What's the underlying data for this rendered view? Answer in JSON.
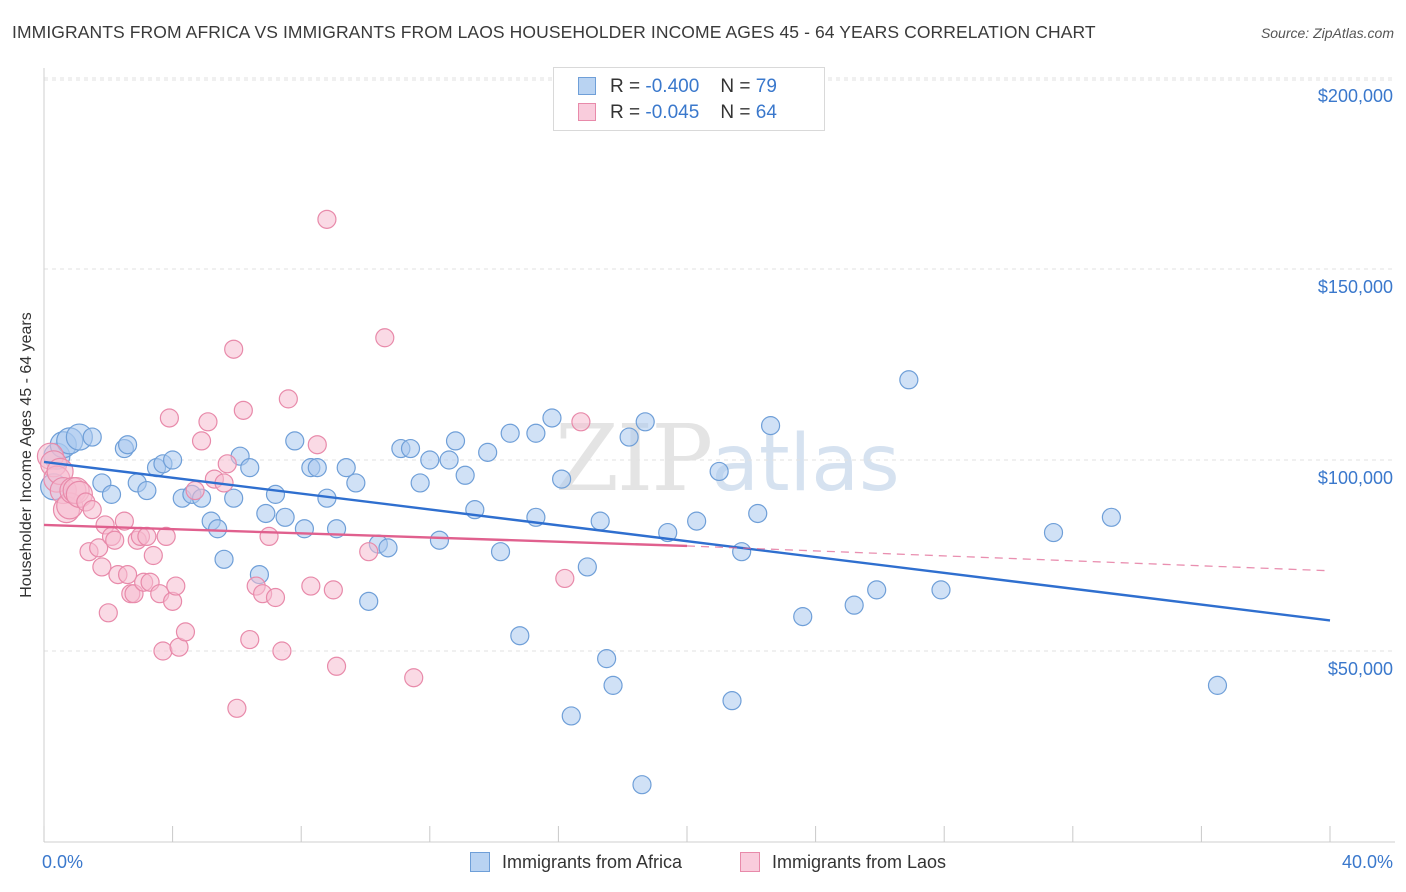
{
  "header": {
    "title": "IMMIGRANTS FROM AFRICA VS IMMIGRANTS FROM LAOS HOUSEHOLDER INCOME AGES 45 - 64 YEARS CORRELATION CHART",
    "source": "Source: ZipAtlas.com"
  },
  "watermark": {
    "zip": "ZIP",
    "atlas": "atlas"
  },
  "legend": {
    "r_label": "R =",
    "n_label": "N =",
    "africa": {
      "r": "-0.400",
      "n": "79"
    },
    "laos": {
      "r": "-0.045",
      "n": "64"
    }
  },
  "colors": {
    "africa_fill": "#a9c8ef",
    "africa_stroke": "#6f9fd8",
    "africa_line": "#2f6fcf",
    "laos_fill": "#f6bcd0",
    "laos_stroke": "#e88aaa",
    "laos_line": "#e0608e",
    "tick_text": "#3a78cc",
    "grid": "#e2e2e2"
  },
  "chart_data": {
    "type": "scatter",
    "title": "IMMIGRANTS FROM AFRICA VS IMMIGRANTS FROM LAOS HOUSEHOLDER INCOME AGES 45 - 64 YEARS CORRELATION CHART",
    "xlabel": "",
    "ylabel": "Householder Income Ages 45 - 64 years",
    "xlim": [
      0,
      40
    ],
    "ylim": [
      0,
      205000
    ],
    "x_tick_labels": [
      "0.0%",
      "40.0%"
    ],
    "y_ticks": [
      50000,
      100000,
      150000,
      200000
    ],
    "y_tick_labels": [
      "$50,000",
      "$100,000",
      "$150,000",
      "$200,000"
    ],
    "grid": true,
    "legend_position": "top-center",
    "series": [
      {
        "name": "Immigrants from Africa",
        "trend": {
          "x": [
            0,
            40
          ],
          "y": [
            99500,
            58000
          ]
        },
        "points": [
          [
            0.3,
            93000
          ],
          [
            0.4,
            101000
          ],
          [
            0.6,
            104000
          ],
          [
            0.8,
            105000
          ],
          [
            1.1,
            106000
          ],
          [
            1.5,
            106000
          ],
          [
            1.8,
            94000
          ],
          [
            2.1,
            91000
          ],
          [
            2.5,
            103000
          ],
          [
            2.6,
            104000
          ],
          [
            2.9,
            94000
          ],
          [
            3.2,
            92000
          ],
          [
            3.5,
            98000
          ],
          [
            3.7,
            99000
          ],
          [
            4.0,
            100000
          ],
          [
            4.3,
            90000
          ],
          [
            4.6,
            91000
          ],
          [
            4.9,
            90000
          ],
          [
            5.2,
            84000
          ],
          [
            5.4,
            82000
          ],
          [
            5.6,
            74000
          ],
          [
            5.9,
            90000
          ],
          [
            6.1,
            101000
          ],
          [
            6.4,
            98000
          ],
          [
            6.7,
            70000
          ],
          [
            6.9,
            86000
          ],
          [
            7.2,
            91000
          ],
          [
            7.5,
            85000
          ],
          [
            7.8,
            105000
          ],
          [
            8.1,
            82000
          ],
          [
            8.3,
            98000
          ],
          [
            8.5,
            98000
          ],
          [
            8.8,
            90000
          ],
          [
            9.1,
            82000
          ],
          [
            9.4,
            98000
          ],
          [
            9.7,
            94000
          ],
          [
            10.1,
            63000
          ],
          [
            10.4,
            78000
          ],
          [
            10.7,
            77000
          ],
          [
            11.1,
            103000
          ],
          [
            11.4,
            103000
          ],
          [
            11.7,
            94000
          ],
          [
            12.0,
            100000
          ],
          [
            12.3,
            79000
          ],
          [
            12.6,
            100000
          ],
          [
            12.8,
            105000
          ],
          [
            13.1,
            96000
          ],
          [
            13.4,
            87000
          ],
          [
            13.8,
            102000
          ],
          [
            14.2,
            76000
          ],
          [
            14.5,
            107000
          ],
          [
            14.8,
            54000
          ],
          [
            15.3,
            85000
          ],
          [
            15.3,
            107000
          ],
          [
            15.8,
            111000
          ],
          [
            16.1,
            95000
          ],
          [
            16.4,
            33000
          ],
          [
            16.9,
            72000
          ],
          [
            17.3,
            84000
          ],
          [
            17.5,
            48000
          ],
          [
            17.7,
            41000
          ],
          [
            18.2,
            106000
          ],
          [
            18.6,
            15000
          ],
          [
            18.7,
            110000
          ],
          [
            19.4,
            81000
          ],
          [
            20.3,
            84000
          ],
          [
            21.0,
            97000
          ],
          [
            21.4,
            37000
          ],
          [
            21.7,
            76000
          ],
          [
            22.2,
            86000
          ],
          [
            22.6,
            109000
          ],
          [
            23.6,
            59000
          ],
          [
            25.2,
            62000
          ],
          [
            25.9,
            66000
          ],
          [
            26.9,
            121000
          ],
          [
            27.9,
            66000
          ],
          [
            31.4,
            81000
          ],
          [
            33.2,
            85000
          ],
          [
            36.5,
            41000
          ]
        ]
      },
      {
        "name": "Immigrants from Laos",
        "trend": {
          "x": [
            0,
            20
          ],
          "y": [
            83000,
            77500
          ]
        },
        "trend_extension": {
          "x": [
            20,
            40
          ],
          "y": [
            77500,
            71000
          ]
        },
        "points": [
          [
            0.2,
            101000
          ],
          [
            0.3,
            99000
          ],
          [
            0.4,
            95000
          ],
          [
            0.5,
            97000
          ],
          [
            0.6,
            92000
          ],
          [
            0.7,
            87000
          ],
          [
            0.8,
            88000
          ],
          [
            0.9,
            92000
          ],
          [
            1.0,
            92000
          ],
          [
            1.1,
            91000
          ],
          [
            1.3,
            89000
          ],
          [
            1.4,
            76000
          ],
          [
            1.5,
            87000
          ],
          [
            1.7,
            77000
          ],
          [
            1.8,
            72000
          ],
          [
            1.9,
            83000
          ],
          [
            2.0,
            60000
          ],
          [
            2.1,
            80000
          ],
          [
            2.2,
            79000
          ],
          [
            2.3,
            70000
          ],
          [
            2.5,
            84000
          ],
          [
            2.6,
            70000
          ],
          [
            2.7,
            65000
          ],
          [
            2.8,
            65000
          ],
          [
            2.9,
            79000
          ],
          [
            3.0,
            80000
          ],
          [
            3.1,
            68000
          ],
          [
            3.2,
            80000
          ],
          [
            3.3,
            68000
          ],
          [
            3.4,
            75000
          ],
          [
            3.6,
            65000
          ],
          [
            3.7,
            50000
          ],
          [
            3.8,
            80000
          ],
          [
            3.9,
            111000
          ],
          [
            4.0,
            63000
          ],
          [
            4.1,
            67000
          ],
          [
            4.2,
            51000
          ],
          [
            4.4,
            55000
          ],
          [
            4.7,
            92000
          ],
          [
            4.9,
            105000
          ],
          [
            5.1,
            110000
          ],
          [
            5.3,
            95000
          ],
          [
            5.6,
            94000
          ],
          [
            5.7,
            99000
          ],
          [
            5.9,
            129000
          ],
          [
            6.0,
            35000
          ],
          [
            6.2,
            113000
          ],
          [
            6.4,
            53000
          ],
          [
            6.6,
            67000
          ],
          [
            6.8,
            65000
          ],
          [
            7.0,
            80000
          ],
          [
            7.2,
            64000
          ],
          [
            7.4,
            50000
          ],
          [
            7.6,
            116000
          ],
          [
            8.3,
            67000
          ],
          [
            8.5,
            104000
          ],
          [
            8.8,
            163000
          ],
          [
            9.0,
            66000
          ],
          [
            9.1,
            46000
          ],
          [
            10.1,
            76000
          ],
          [
            10.6,
            132000
          ],
          [
            11.5,
            43000
          ],
          [
            16.2,
            69000
          ],
          [
            16.7,
            110000
          ]
        ]
      }
    ]
  },
  "bottom_legend": {
    "africa_label": "Immigrants from Africa",
    "laos_label": "Immigrants from Laos"
  }
}
